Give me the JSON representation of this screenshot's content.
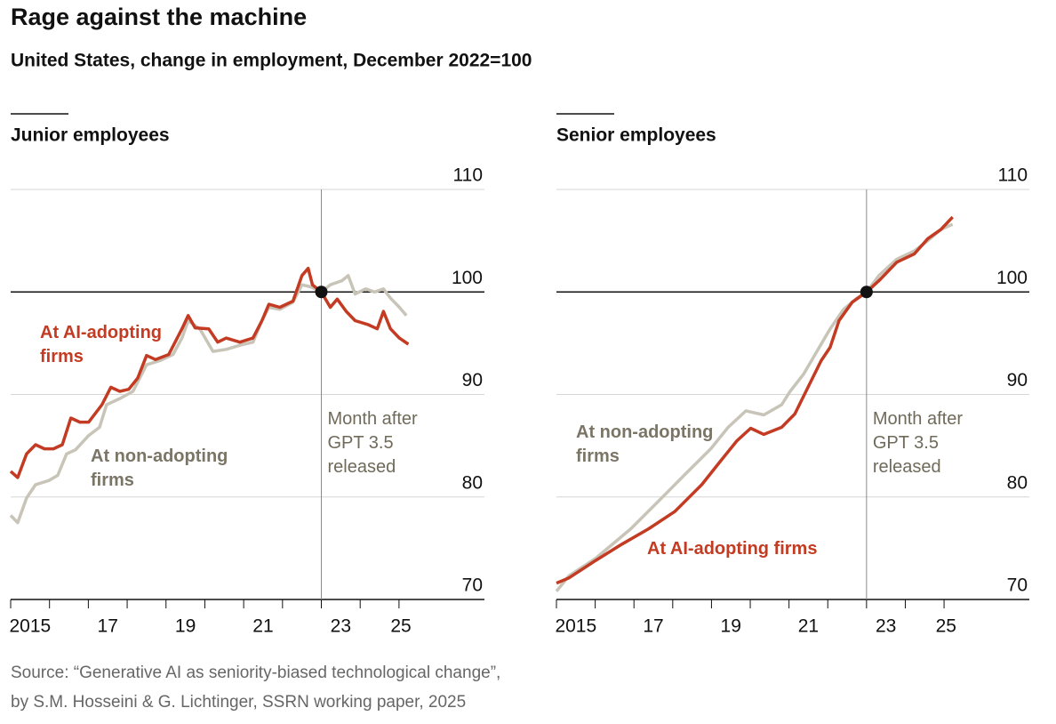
{
  "header": {
    "title": "Rage against the machine",
    "subtitle": "United States, change in employment, December 2022=100"
  },
  "source": [
    "Source: “Generative AI as seniority-biased technological change”,",
    "by S.M. Hosseini & G. Lichtinger, SSRN working paper, 2025"
  ],
  "chart_data": [
    {
      "type": "line",
      "title": "Junior employees",
      "xlim": [
        2015,
        2027.2
      ],
      "ylim": [
        70,
        110
      ],
      "yticks": [
        70,
        80,
        90,
        100,
        110
      ],
      "baseline": 100,
      "xticks": [
        {
          "value": 2015.5,
          "label": "2015"
        },
        {
          "value": 2017.5,
          "label": "17"
        },
        {
          "value": 2019.5,
          "label": "19"
        },
        {
          "value": 2021.5,
          "label": "21"
        },
        {
          "value": 2023.5,
          "label": "23"
        },
        {
          "value": 2025.05,
          "label": "25"
        }
      ],
      "xminorticks": [
        2015,
        2016,
        2017,
        2018,
        2019,
        2020,
        2021,
        2022,
        2023,
        2024,
        2025
      ],
      "grid": true,
      "reference_line": {
        "x": 2023,
        "label": "Month after GPT 3.5 released"
      },
      "series": [
        {
          "name": "At AI-adopting firms",
          "color": "#c23b22",
          "label_color": "#c23b22",
          "x": [
            2015.0,
            2015.18,
            2015.41,
            2015.64,
            2015.87,
            2016.1,
            2016.33,
            2016.55,
            2016.78,
            2017.01,
            2017.35,
            2017.58,
            2017.81,
            2018.04,
            2018.27,
            2018.5,
            2018.73,
            2019.07,
            2019.41,
            2019.57,
            2019.75,
            2020.1,
            2020.33,
            2020.55,
            2020.9,
            2021.24,
            2021.47,
            2021.65,
            2021.93,
            2022.27,
            2022.5,
            2022.66,
            2022.77,
            2023.0,
            2023.23,
            2023.41,
            2023.64,
            2023.87,
            2024.21,
            2024.44,
            2024.6,
            2024.78,
            2025.01,
            2025.24
          ],
          "values": [
            82.5,
            81.9,
            84.2,
            85.1,
            84.7,
            84.7,
            85.1,
            87.7,
            87.3,
            87.3,
            89.0,
            90.7,
            90.3,
            90.5,
            91.6,
            93.8,
            93.4,
            93.9,
            96.4,
            97.7,
            96.5,
            96.4,
            95.1,
            95.5,
            95.1,
            95.5,
            97.2,
            98.8,
            98.5,
            99.1,
            101.6,
            102.3,
            100.7,
            100,
            98.5,
            99.3,
            98.1,
            97.2,
            96.8,
            96.4,
            98.1,
            96.4,
            95.5,
            94.9
          ]
        },
        {
          "name": "At non-adopting firms",
          "color": "#c8c4b8",
          "label_color": "#7b7566",
          "x": [
            2015.0,
            2015.18,
            2015.41,
            2015.64,
            2015.98,
            2016.21,
            2016.44,
            2016.67,
            2017.01,
            2017.29,
            2017.47,
            2017.81,
            2018.15,
            2018.5,
            2018.84,
            2019.18,
            2019.41,
            2019.57,
            2019.87,
            2020.21,
            2020.55,
            2020.9,
            2021.24,
            2021.47,
            2021.65,
            2021.93,
            2022.27,
            2022.5,
            2022.73,
            2023.0,
            2023.23,
            2023.53,
            2023.69,
            2023.87,
            2024.14,
            2024.37,
            2024.6,
            2024.78,
            2025.01,
            2025.19
          ],
          "values": [
            78.2,
            77.5,
            79.9,
            81.2,
            81.6,
            82.1,
            84.2,
            84.6,
            86.0,
            86.8,
            89.0,
            89.6,
            90.3,
            92.9,
            93.3,
            93.9,
            95.5,
            97.2,
            96.4,
            94.2,
            94.4,
            94.8,
            95.1,
            97.2,
            98.5,
            98.3,
            99.0,
            100.7,
            100.5,
            100,
            100.7,
            101.1,
            101.6,
            99.8,
            100.3,
            100.0,
            100.3,
            99.4,
            98.5,
            97.7
          ]
        }
      ]
    },
    {
      "type": "line",
      "title": "Senior employees",
      "xlim": [
        2015,
        2027.2
      ],
      "ylim": [
        70,
        110
      ],
      "yticks": [
        70,
        80,
        90,
        100,
        110
      ],
      "baseline": 100,
      "xticks": [
        {
          "value": 2015.5,
          "label": "2015"
        },
        {
          "value": 2017.5,
          "label": "17"
        },
        {
          "value": 2019.5,
          "label": "19"
        },
        {
          "value": 2021.5,
          "label": "21"
        },
        {
          "value": 2023.5,
          "label": "23"
        },
        {
          "value": 2025.05,
          "label": "25"
        }
      ],
      "xminorticks": [
        2015,
        2016,
        2017,
        2018,
        2019,
        2020,
        2021,
        2022,
        2023,
        2024,
        2025
      ],
      "grid": true,
      "reference_line": {
        "x": 2023,
        "label": "Month after GPT 3.5 released"
      },
      "series": [
        {
          "name": "At AI-adopting firms",
          "color": "#c23b22",
          "label_color": "#c23b22",
          "x": [
            2015.0,
            2015.32,
            2016.01,
            2016.69,
            2017.38,
            2018.06,
            2018.75,
            2019.21,
            2019.66,
            2020.01,
            2020.35,
            2020.81,
            2021.15,
            2021.49,
            2021.83,
            2022.06,
            2022.29,
            2022.63,
            2023.0,
            2023.32,
            2023.78,
            2024.23,
            2024.58,
            2024.92,
            2025.22
          ],
          "values": [
            71.6,
            72.1,
            73.8,
            75.4,
            76.9,
            78.6,
            81.2,
            83.4,
            85.5,
            86.7,
            86.1,
            86.8,
            88.1,
            90.7,
            93.3,
            94.6,
            97.2,
            99.0,
            100,
            101.1,
            102.9,
            103.7,
            105.2,
            106.1,
            107.3
          ]
        },
        {
          "name": "At non-adopting firms",
          "color": "#c8c4b8",
          "label_color": "#7b7566",
          "x": [
            2015.0,
            2015.32,
            2016.01,
            2016.92,
            2017.61,
            2018.29,
            2018.98,
            2019.43,
            2019.89,
            2020.35,
            2020.81,
            2021.03,
            2021.38,
            2021.72,
            2022.06,
            2022.41,
            2022.75,
            2023.0,
            2023.32,
            2023.78,
            2024.23,
            2024.58,
            2024.92,
            2025.22
          ],
          "values": [
            70.8,
            72.3,
            74.0,
            76.9,
            79.5,
            82.1,
            84.7,
            86.8,
            88.4,
            88.0,
            89.0,
            90.3,
            92.0,
            94.2,
            96.4,
            98.3,
            99.4,
            100,
            101.6,
            103.2,
            104.0,
            105.0,
            106.1,
            106.6
          ]
        }
      ]
    }
  ]
}
